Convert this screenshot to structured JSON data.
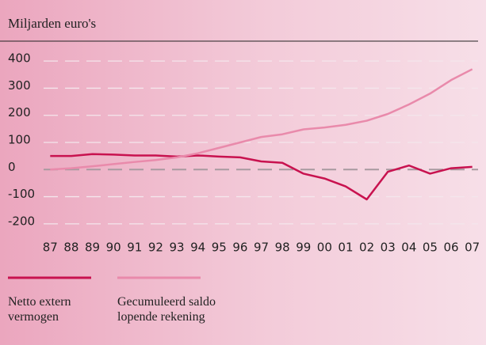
{
  "chart_data": {
    "type": "line",
    "subtitle": "Miljarden euro's",
    "categories": [
      "87",
      "88",
      "89",
      "90",
      "91",
      "92",
      "93",
      "94",
      "95",
      "96",
      "97",
      "98",
      "99",
      "00",
      "01",
      "02",
      "03",
      "04",
      "05",
      "06",
      "07"
    ],
    "series": [
      {
        "name": "Netto extern vermogen",
        "color": "#c8124f",
        "values": [
          50,
          50,
          57,
          55,
          52,
          52,
          48,
          52,
          48,
          45,
          30,
          25,
          -15,
          -33,
          -62,
          -110,
          -8,
          15,
          -15,
          5,
          10
        ]
      },
      {
        "name": "Gecumuleerd saldo lopende rekening",
        "color": "#e98aab",
        "values": [
          0,
          5,
          12,
          20,
          28,
          35,
          45,
          60,
          80,
          100,
          120,
          130,
          148,
          155,
          165,
          180,
          205,
          240,
          280,
          330,
          370
        ]
      }
    ],
    "ylim": [
      -250,
      450
    ],
    "yticks": [
      -200,
      -100,
      0,
      100,
      200,
      300,
      400
    ],
    "grid": true
  }
}
